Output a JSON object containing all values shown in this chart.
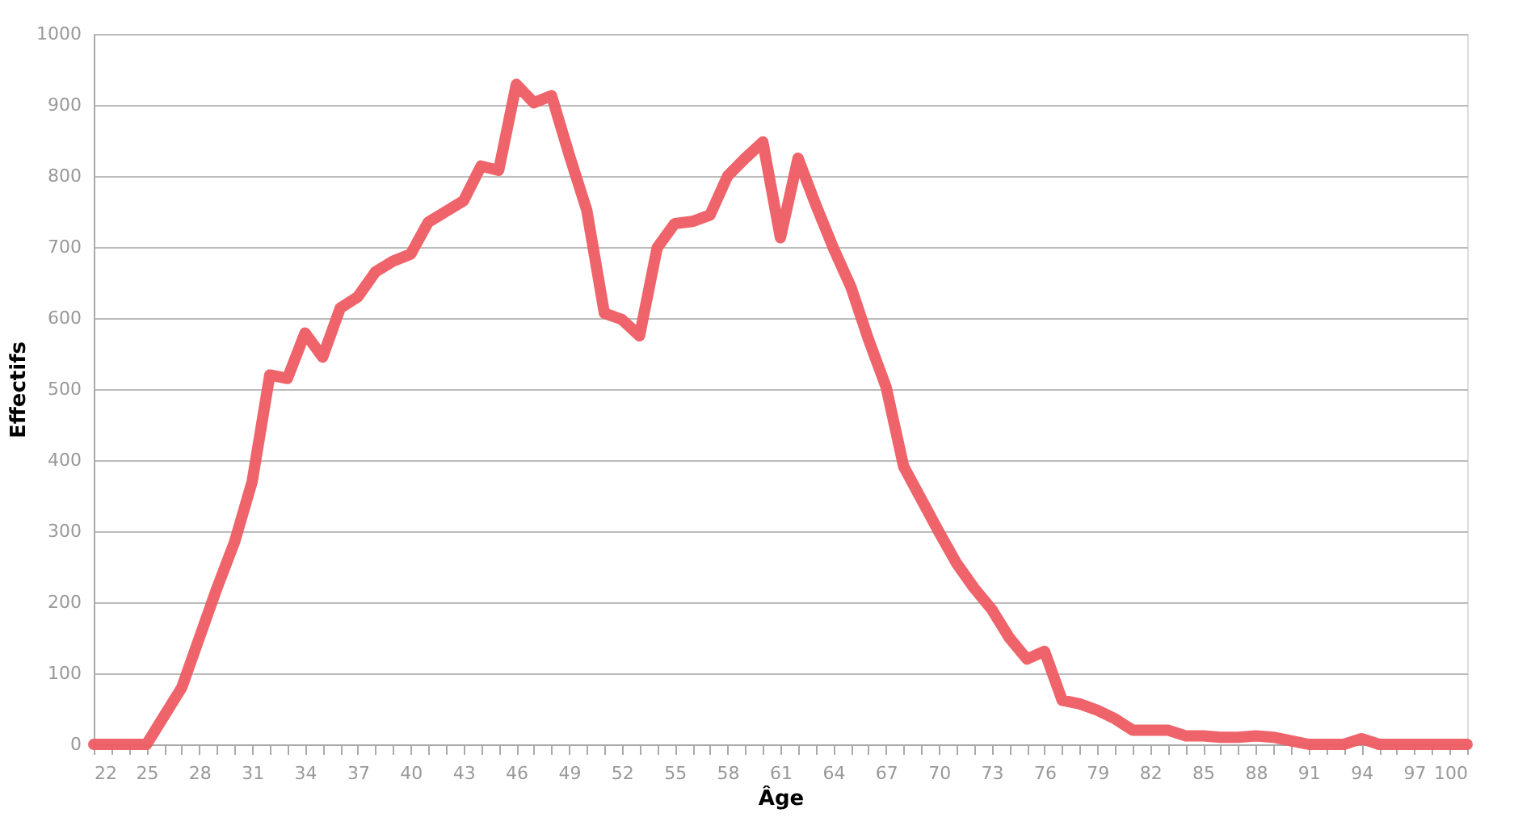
{
  "chart_data": {
    "type": "line",
    "xlabel": "Âge",
    "ylabel": "Effectifs",
    "x": [
      22,
      23,
      24,
      25,
      26,
      27,
      28,
      29,
      30,
      31,
      32,
      33,
      34,
      35,
      36,
      37,
      38,
      39,
      40,
      41,
      42,
      43,
      44,
      45,
      46,
      47,
      48,
      49,
      50,
      51,
      52,
      53,
      54,
      55,
      56,
      57,
      58,
      59,
      60,
      61,
      62,
      63,
      64,
      65,
      66,
      67,
      68,
      69,
      70,
      71,
      72,
      73,
      74,
      75,
      76,
      77,
      78,
      79,
      80,
      81,
      82,
      83,
      84,
      85,
      86,
      87,
      88,
      89,
      90,
      91,
      92,
      93,
      94,
      95,
      96,
      97,
      98,
      99,
      100
    ],
    "series": [
      {
        "color": "#ee5c62",
        "values": [
          0,
          0,
          0,
          0,
          40,
          80,
          150,
          220,
          285,
          370,
          520,
          515,
          579,
          545,
          614,
          630,
          665,
          680,
          690,
          735,
          750,
          765,
          814,
          808,
          929,
          903,
          913,
          830,
          752,
          607,
          598,
          575,
          699,
          733,
          736,
          745,
          800,
          825,
          848,
          713,
          825,
          760,
          699,
          644,
          570,
          503,
          391,
          345,
          299,
          255,
          220,
          190,
          150,
          120,
          131,
          62,
          57,
          48,
          36,
          20,
          20,
          20,
          12,
          12,
          10,
          10,
          12,
          10,
          5,
          0,
          0,
          0,
          8,
          0,
          0,
          0,
          0,
          0,
          0
        ]
      }
    ],
    "xlim": [
      22,
      100
    ],
    "xticks": [
      22,
      {
        "value": 23,
        "label": null
      },
      {
        "value": 24,
        "label": null
      },
      25,
      {
        "value": 26,
        "label": null
      },
      {
        "value": 27,
        "label": null
      },
      28,
      {
        "value": 29,
        "label": null
      },
      {
        "value": 30,
        "label": null
      },
      31,
      {
        "value": 32,
        "label": null
      },
      {
        "value": 33,
        "label": null
      },
      34,
      {
        "value": 35,
        "label": null
      },
      {
        "value": 36,
        "label": null
      },
      37,
      {
        "value": 38,
        "label": null
      },
      {
        "value": 39,
        "label": null
      },
      40,
      {
        "value": 41,
        "label": null
      },
      {
        "value": 42,
        "label": null
      },
      43,
      {
        "value": 44,
        "label": null
      },
      {
        "value": 45,
        "label": null
      },
      46,
      {
        "value": 47,
        "label": null
      },
      {
        "value": 48,
        "label": null
      },
      49,
      {
        "value": 50,
        "label": null
      },
      {
        "value": 51,
        "label": null
      },
      52,
      {
        "value": 53,
        "label": null
      },
      {
        "value": 54,
        "label": null
      },
      55,
      {
        "value": 56,
        "label": null
      },
      {
        "value": 57,
        "label": null
      },
      58,
      {
        "value": 59,
        "label": null
      },
      {
        "value": 60,
        "label": null
      },
      61,
      {
        "value": 62,
        "label": null
      },
      {
        "value": 63,
        "label": null
      },
      64,
      {
        "value": 65,
        "label": null
      },
      {
        "value": 66,
        "label": null
      },
      67,
      {
        "value": 68,
        "label": null
      },
      {
        "value": 69,
        "label": null
      },
      70,
      {
        "value": 71,
        "label": null
      },
      {
        "value": 72,
        "label": null
      },
      73,
      {
        "value": 74,
        "label": null
      },
      {
        "value": 75,
        "label": null
      },
      76,
      {
        "value": 77,
        "label": null
      },
      {
        "value": 78,
        "label": null
      },
      79,
      {
        "value": 80,
        "label": null
      },
      {
        "value": 81,
        "label": null
      },
      82,
      {
        "value": 83,
        "label": null
      },
      {
        "value": 84,
        "label": null
      },
      85,
      {
        "value": 86,
        "label": null
      },
      {
        "value": 87,
        "label": null
      },
      88,
      {
        "value": 89,
        "label": null
      },
      {
        "value": 90,
        "label": null
      },
      91,
      {
        "value": 92,
        "label": null
      },
      {
        "value": 93,
        "label": null
      },
      94,
      {
        "value": 95,
        "label": null
      },
      {
        "value": 96,
        "label": null
      },
      97,
      {
        "value": 98,
        "label": null
      },
      {
        "value": 99,
        "label": null
      },
      100
    ],
    "ylim": [
      0,
      1000
    ],
    "yticks": [
      0,
      100,
      200,
      300,
      400,
      500,
      600,
      700,
      800,
      900,
      1000
    ],
    "grid": "y",
    "marker": "none",
    "line_style": "solid"
  }
}
